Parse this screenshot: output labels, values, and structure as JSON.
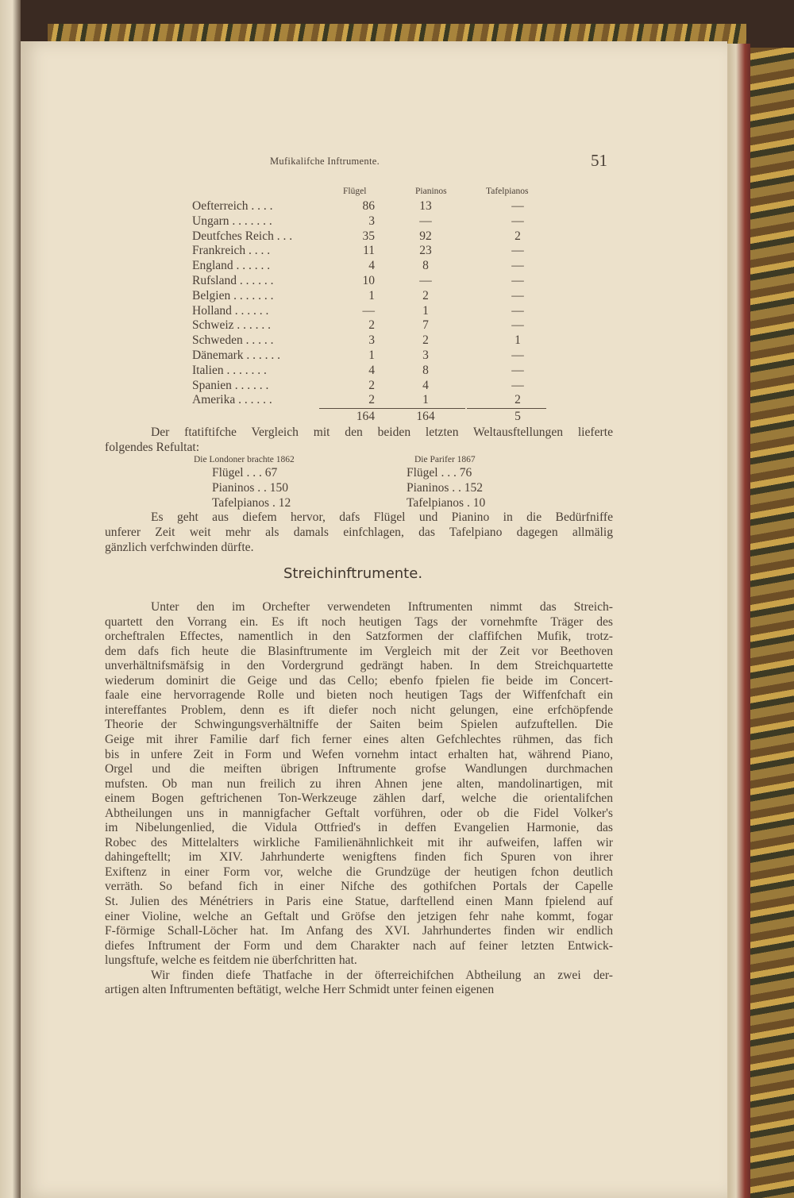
{
  "running_head": "Mufikalifche Inftrumente.",
  "page_number": "51",
  "table": {
    "headers": [
      "Flügel",
      "Pianinos",
      "Tafelpianos"
    ],
    "rows": [
      {
        "country": "Oefterreich . . . .",
        "fluegel": "86",
        "pianinos": "13",
        "tafelpianos": "—"
      },
      {
        "country": "Ungarn . . . . . . .",
        "fluegel": "3",
        "pianinos": "—",
        "tafelpianos": "—"
      },
      {
        "country": "Deutfches Reich . . .",
        "fluegel": "35",
        "pianinos": "92",
        "tafelpianos": "2"
      },
      {
        "country": "Frankreich . . . .",
        "fluegel": "11",
        "pianinos": "23",
        "tafelpianos": "—"
      },
      {
        "country": "England . . . . . .",
        "fluegel": "4",
        "pianinos": "8",
        "tafelpianos": "—"
      },
      {
        "country": "Rufsland . . . . . .",
        "fluegel": "10",
        "pianinos": "—",
        "tafelpianos": "—"
      },
      {
        "country": "Belgien . . . . . . .",
        "fluegel": "1",
        "pianinos": "2",
        "tafelpianos": "—"
      },
      {
        "country": "Holland . . . . . .",
        "fluegel": "—",
        "pianinos": "1",
        "tafelpianos": "—"
      },
      {
        "country": "Schweiz . . . . . .",
        "fluegel": "2",
        "pianinos": "7",
        "tafelpianos": "—"
      },
      {
        "country": "Schweden . . . . .",
        "fluegel": "3",
        "pianinos": "2",
        "tafelpianos": "1"
      },
      {
        "country": "Dänemark . . . . . .",
        "fluegel": "1",
        "pianinos": "3",
        "tafelpianos": "—"
      },
      {
        "country": "Italien . . . . . . .",
        "fluegel": "4",
        "pianinos": "8",
        "tafelpianos": "—"
      },
      {
        "country": "Spanien . . . . . .",
        "fluegel": "2",
        "pianinos": "4",
        "tafelpianos": "—"
      },
      {
        "country": "Amerika . . . . . .",
        "fluegel": "2",
        "pianinos": "1",
        "tafelpianos": "2"
      }
    ],
    "totals": {
      "fluegel": "164",
      "pianinos": "164",
      "tafelpianos": "5"
    }
  },
  "intro": {
    "lines": [
      "Der ftatiftifche Vergleich mit den beiden letzten Weltausftellungen lieferte",
      "folgendes Refultat:"
    ]
  },
  "comparison": {
    "london": {
      "caption": "Die Londoner brachte 1862",
      "items": [
        "Flügel . . . 67",
        "Pianinos . . 150",
        "Tafelpianos . 12"
      ]
    },
    "paris": {
      "caption": "Die Parifer 1867",
      "items": [
        "Flügel . . . 76",
        "Pianinos . . 152",
        "Tafelpianos . 10"
      ]
    }
  },
  "conclusion": {
    "lines": [
      "Es geht aus diefem hervor, dafs Flügel und Pianino in die Bedürfniffe",
      "unferer Zeit weit mehr als damals einfchlagen, das Tafelpiano dagegen allmälig",
      "gänzlich verfchwinden dürfte."
    ]
  },
  "section_heading": "Streichinftrumente.",
  "section_body": {
    "lines": [
      "Unter den im Orchefter verwendeten Inftrumenten nimmt das Streich-",
      "quartett den Vorrang ein. Es ift noch heutigen Tags der vornehmfte Träger des",
      "orcheftralen Effectes, namentlich in den Satzformen der claffifchen Mufik, trotz-",
      "dem dafs fich heute die Blasinftrumente im Vergleich mit der Zeit vor Beethoven",
      "unverhältnifsmäfsig in den Vordergrund gedrängt haben. In dem Streichquartette",
      "wiederum dominirt die Geige und das Cello; ebenfo fpielen fie beide im Concert-",
      "faale eine hervorragende Rolle und bieten noch heutigen Tags der Wiffenfchaft ein",
      "intereffantes Problem, denn es ift diefer noch nicht gelungen, eine erfchöpfende",
      "Theorie der Schwingungsverhältniffe der Saiten beim Spielen aufzuftellen. Die",
      "Geige mit ihrer Familie darf fich ferner eines alten Gefchlechtes rühmen, das fich",
      "bis in unfere Zeit in Form und Wefen vornehm intact erhalten hat, während Piano,",
      "Orgel und die meiften übrigen Inftrumente grofse Wandlungen durchmachen",
      "mufsten. Ob man nun freilich zu ihren Ahnen jene alten, mandolinartigen, mit",
      "einem Bogen geftrichenen Ton-Werkzeuge zählen darf, welche die orientalifchen",
      "Abtheilungen uns in mannigfacher Geftalt vorführen, oder ob die Fidel Volker's",
      "im Nibelungenlied, die Vidula Ottfried's in deffen Evangelien Harmonie, das",
      "Robec des Mittelalters wirkliche Familienähnlichkeit mit ihr aufweifen, laffen wir",
      "dahingeftellt; im XIV. Jahrhunderte wenigftens finden fich Spuren von ihrer",
      "Exiftenz in einer Form vor, welche die Grundzüge der heutigen fchon deutlich",
      "verräth. So befand fich in einer Nifche des gothifchen Portals der Capelle",
      "St. Julien des Ménétriers in Paris eine Statue, darftellend einen Mann fpielend auf",
      "einer Violine, welche an Geftalt und Gröfse den jetzigen fehr nahe kommt, fogar",
      "F-förmige Schall-Löcher hat. Im Anfang des XVI. Jahrhundertes finden wir endlich",
      "diefes Inftrument der Form und dem Charakter nach auf feiner letzten Entwick-",
      "lungsftufe, welche es feitdem nie überfchritten hat.",
      "Wir finden diefe Thatfache in der öfterreichifchen Abtheilung an zwei der-",
      "artigen alten Inftrumenten beftätigt, welche Herr Schmidt unter feinen eigenen"
    ]
  }
}
